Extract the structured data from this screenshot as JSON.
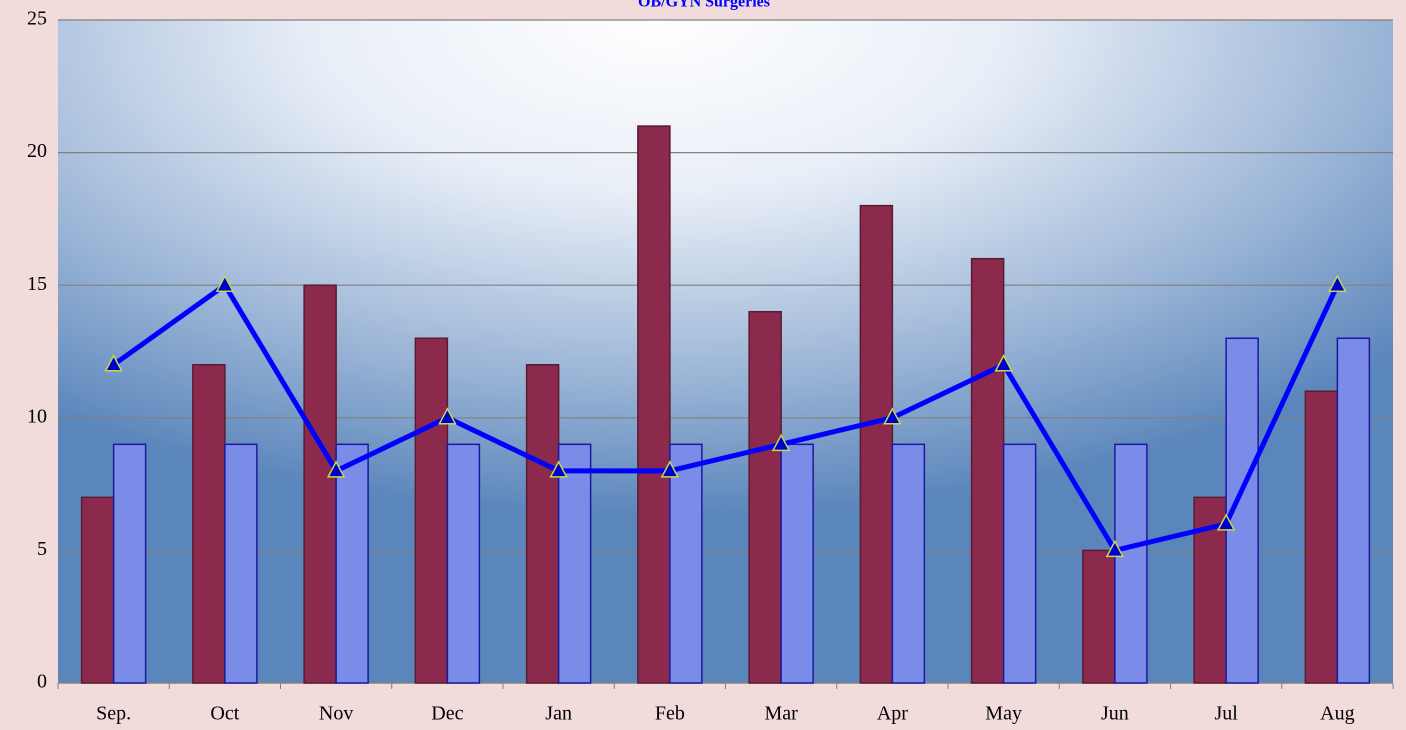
{
  "chart_data": {
    "type": "bar",
    "title": "OB/GYN Surgeries",
    "categories": [
      "Sep.",
      "Oct",
      "Nov",
      "Dec",
      "Jan",
      "Feb",
      "Mar",
      "Apr",
      "May",
      "Jun",
      "Jul",
      "Aug"
    ],
    "series": [
      {
        "color": "#8b2a4c",
        "values": [
          7,
          12,
          15,
          13,
          12,
          21,
          14,
          18,
          16,
          5,
          7,
          11
        ]
      },
      {
        "color": "#7b8be8",
        "values": [
          9,
          9,
          9,
          9,
          9,
          9,
          9,
          9,
          9,
          9,
          13,
          13
        ]
      },
      {
        "type": "line",
        "color": "#0000ff",
        "values": [
          12,
          15,
          8,
          10,
          8,
          8,
          9,
          10,
          12,
          5,
          6,
          15
        ]
      }
    ],
    "ylim": [
      0,
      25
    ],
    "yticks": [
      0,
      5,
      10,
      15,
      20,
      25
    ],
    "grid": true
  }
}
